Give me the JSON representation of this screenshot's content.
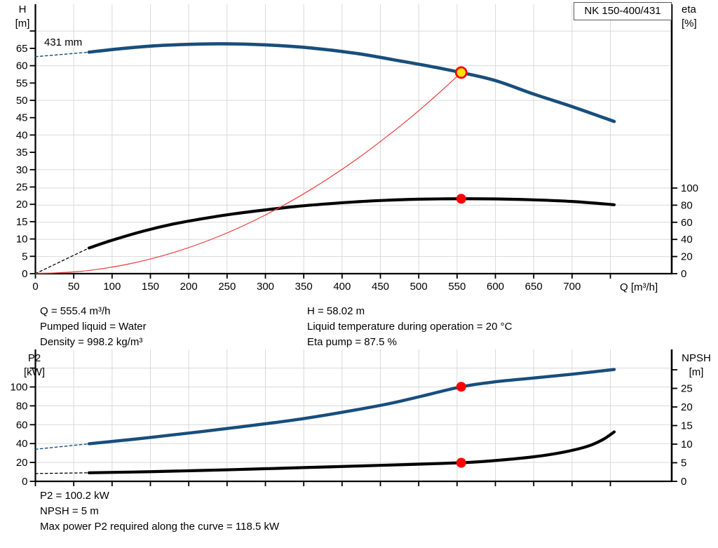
{
  "title_box": "NK 150-400/431",
  "axis_labels": {
    "h": [
      "H",
      "[m]"
    ],
    "eta": [
      "eta",
      "[%]"
    ],
    "q": "Q [m³/h]",
    "p2": [
      "P2",
      "[kW]"
    ],
    "npsh": [
      "NPSH",
      "[m]"
    ]
  },
  "info_top": {
    "left": [
      "Q = 555.4 m³/h",
      "Pumped liquid = Water",
      "Density = 998.2 kg/m³"
    ],
    "right": [
      "H = 58.02 m",
      "Liquid temperature during operation = 20 °C",
      "Eta pump = 87.5 %"
    ]
  },
  "info_bottom": [
    "P2 = 100.2 kW",
    "NPSH = 5 m",
    "Max power P2 required along the curve = 118.5 kW"
  ],
  "colors": {
    "curve_blue": "#174e7d",
    "curve_black": "#000000",
    "system_red": "#ee3b3b",
    "marker_red": "#ff0000",
    "marker_yellow": "#ffe10a",
    "grid": "#d9d9d9",
    "axis": "#000000"
  },
  "chart_data": [
    {
      "type": "line",
      "title": "QH, efficiency and system curves",
      "impeller_label": "431 mm",
      "x_axis": {
        "label": "Q [m³/h]",
        "min": 0,
        "max": 830,
        "ticks_labeled": [
          0,
          50,
          100,
          150,
          200,
          250,
          300,
          350,
          400,
          450,
          500,
          550,
          600,
          650,
          700
        ],
        "ticks_unlabeled": [
          750
        ],
        "show_tick_labels": true
      },
      "y_left": {
        "key": "h",
        "label": "H [m]",
        "min": 0,
        "max": 77,
        "ticks_labeled": [
          0,
          5,
          10,
          15,
          20,
          25,
          30,
          35,
          40,
          45,
          50,
          55,
          60,
          65
        ],
        "ticks_unlabeled": [
          70
        ],
        "gridlines": [
          30,
          40,
          50,
          60,
          70
        ]
      },
      "y_right": {
        "key": "eta",
        "label": "eta [%]",
        "min": 0,
        "max": 100,
        "ticks_labeled": [
          0,
          20,
          40,
          60,
          80,
          100
        ],
        "ticks_unlabeled": [],
        "gridlines": [
          20,
          40,
          60,
          80,
          100
        ]
      },
      "series": [
        {
          "name": "head-curve-dashed",
          "axis": "h",
          "dashed": true,
          "color": "#174e7d",
          "width": 1.4,
          "points": [
            [
              0,
              62.6
            ],
            [
              70,
              63.9
            ]
          ]
        },
        {
          "name": "head-curve",
          "axis": "h",
          "dashed": false,
          "color": "#174e7d",
          "width": 4.6,
          "points": [
            [
              70,
              63.9
            ],
            [
              120,
              65.1
            ],
            [
              170,
              65.9
            ],
            [
              240,
              66.3
            ],
            [
              300,
              66.0
            ],
            [
              360,
              65.1
            ],
            [
              420,
              63.5
            ],
            [
              480,
              61.2
            ],
            [
              520,
              59.6
            ],
            [
              555.4,
              58.02
            ],
            [
              600,
              55.7
            ],
            [
              650,
              51.8
            ],
            [
              700,
              48.2
            ],
            [
              755,
              43.9
            ]
          ]
        },
        {
          "name": "eta-curve-dashed",
          "axis": "eta",
          "dashed": true,
          "color": "#000000",
          "width": 1.3,
          "points": [
            [
              0,
              0
            ],
            [
              70,
              30
            ]
          ]
        },
        {
          "name": "eta-curve",
          "axis": "eta",
          "dashed": false,
          "color": "#000000",
          "width": 4.2,
          "points": [
            [
              70,
              30
            ],
            [
              100,
              39
            ],
            [
              140,
              49.5
            ],
            [
              180,
              58
            ],
            [
              220,
              64.5
            ],
            [
              260,
              70
            ],
            [
              300,
              74.5
            ],
            [
              340,
              78.5
            ],
            [
              380,
              81.5
            ],
            [
              420,
              84
            ],
            [
              460,
              85.8
            ],
            [
              500,
              87
            ],
            [
              555.4,
              87.5
            ],
            [
              600,
              87.3
            ],
            [
              650,
              86.2
            ],
            [
              700,
              84.3
            ],
            [
              755,
              80.5
            ]
          ]
        },
        {
          "name": "system-curve",
          "axis": "h",
          "dashed": false,
          "color": "#ee3b3b",
          "width": 1.2,
          "points": [
            [
              0,
              0
            ],
            [
              60,
              0.68
            ],
            [
              120,
              2.71
            ],
            [
              180,
              6.09
            ],
            [
              240,
              10.83
            ],
            [
              300,
              16.93
            ],
            [
              360,
              24.38
            ],
            [
              420,
              33.18
            ],
            [
              480,
              43.33
            ],
            [
              520,
              50.86
            ],
            [
              555.4,
              58.02
            ]
          ]
        }
      ],
      "markers": [
        {
          "name": "duty-point-qh",
          "axis": "h",
          "q": 555.4,
          "value": 58.02,
          "style": "duty"
        },
        {
          "name": "duty-point-eta",
          "axis": "eta",
          "q": 555.4,
          "value": 87.5,
          "style": "dot"
        }
      ]
    },
    {
      "type": "line",
      "title": "P2 and NPSH curves",
      "x_axis": {
        "label": "",
        "min": 0,
        "max": 830,
        "ticks_labeled": [
          0,
          50,
          100,
          150,
          200,
          250,
          300,
          350,
          400,
          450,
          500,
          550,
          600,
          650,
          700
        ],
        "ticks_unlabeled": [
          750
        ],
        "show_tick_labels": false
      },
      "y_left": {
        "key": "p2",
        "label": "P2 [kW]",
        "min": 0,
        "max": 138,
        "ticks_labeled": [
          0,
          20,
          40,
          60,
          80,
          100
        ],
        "ticks_unlabeled": [
          120
        ],
        "gridlines": [
          20,
          40,
          60,
          80,
          100,
          120
        ]
      },
      "y_right": {
        "key": "npsh",
        "label": "NPSH [m]",
        "min": 0,
        "max": 35,
        "ticks_labeled": [
          0,
          5,
          10,
          15,
          20,
          25
        ],
        "ticks_unlabeled": [
          30
        ],
        "gridlines": []
      },
      "series": [
        {
          "name": "p2-curve-dashed",
          "axis": "p2",
          "dashed": true,
          "color": "#174e7d",
          "width": 1.4,
          "points": [
            [
              0,
              34
            ],
            [
              70,
              39.8
            ]
          ]
        },
        {
          "name": "p2-curve",
          "axis": "p2",
          "dashed": false,
          "color": "#174e7d",
          "width": 4.4,
          "points": [
            [
              70,
              39.8
            ],
            [
              150,
              46.5
            ],
            [
              250,
              56
            ],
            [
              350,
              66.5
            ],
            [
              450,
              80.5
            ],
            [
              500,
              89.5
            ],
            [
              555.4,
              100.2
            ],
            [
              600,
              105.5
            ],
            [
              650,
              109.5
            ],
            [
              700,
              113.5
            ],
            [
              755,
              118.5
            ]
          ]
        },
        {
          "name": "npsh-curve-dashed",
          "axis": "npsh",
          "dashed": true,
          "color": "#000000",
          "width": 1.3,
          "points": [
            [
              0,
              2.1
            ],
            [
              70,
              2.3
            ]
          ]
        },
        {
          "name": "npsh-curve",
          "axis": "npsh",
          "dashed": false,
          "color": "#000000",
          "width": 4.2,
          "points": [
            [
              70,
              2.3
            ],
            [
              150,
              2.6
            ],
            [
              250,
              3.1
            ],
            [
              350,
              3.7
            ],
            [
              450,
              4.3
            ],
            [
              555.4,
              5.0
            ],
            [
              600,
              5.6
            ],
            [
              650,
              6.6
            ],
            [
              690,
              7.9
            ],
            [
              720,
              9.4
            ],
            [
              740,
              11.2
            ],
            [
              755,
              13.3
            ]
          ]
        }
      ],
      "markers": [
        {
          "name": "duty-point-p2",
          "axis": "p2",
          "q": 555.4,
          "value": 100.2,
          "style": "dot"
        },
        {
          "name": "duty-point-npsh",
          "axis": "npsh",
          "q": 555.4,
          "value": 5,
          "style": "dot"
        }
      ]
    }
  ]
}
